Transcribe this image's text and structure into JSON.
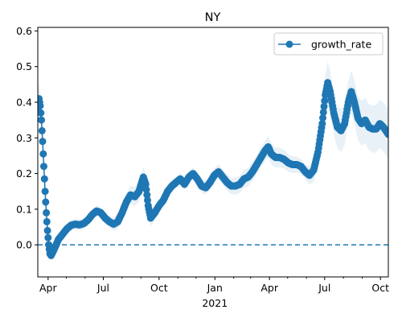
{
  "chart_data": {
    "type": "line",
    "title": "NY",
    "xlabel": "",
    "ylabel": "",
    "x_range": [
      "2020-03-15",
      "2021-10-14"
    ],
    "ylim": [
      -0.09,
      0.61
    ],
    "x_ticks": [
      {
        "date": "2020-04-01",
        "label": "Apr"
      },
      {
        "date": "2020-07-01",
        "label": "Jul"
      },
      {
        "date": "2020-10-01",
        "label": "Oct"
      },
      {
        "date": "2021-01-01",
        "label": "Jan"
      },
      {
        "date": "2021-04-01",
        "label": "Apr"
      },
      {
        "date": "2021-07-01",
        "label": "Jul"
      },
      {
        "date": "2021-10-01",
        "label": "Oct"
      }
    ],
    "x_year_label": {
      "date": "2021-01-01",
      "label": "2021"
    },
    "y_ticks": [
      0.0,
      0.1,
      0.2,
      0.3,
      0.4,
      0.5,
      0.6
    ],
    "y_tick_labels": [
      "0.0",
      "0.1",
      "0.2",
      "0.3",
      "0.4",
      "0.5",
      "0.6"
    ],
    "legend": {
      "position": "top-right",
      "entries": [
        "growth_rate"
      ]
    },
    "reference_line": {
      "y": 0.0,
      "style": "dashed"
    },
    "grid": false,
    "colors": {
      "series": "#1f77b4",
      "band": "#1f77b4",
      "band_opacity": 0.1
    },
    "series": [
      {
        "name": "growth_rate",
        "points": [
          [
            "2020-03-15",
            0.38
          ],
          [
            "2020-03-17",
            0.41
          ],
          [
            "2020-03-19",
            0.39
          ],
          [
            "2020-03-21",
            0.35
          ],
          [
            "2020-03-23",
            0.29
          ],
          [
            "2020-03-25",
            0.22
          ],
          [
            "2020-03-27",
            0.15
          ],
          [
            "2020-03-29",
            0.09
          ],
          [
            "2020-03-31",
            0.04
          ],
          [
            "2020-04-02",
            0.0
          ],
          [
            "2020-04-04",
            -0.025
          ],
          [
            "2020-04-06",
            -0.03
          ],
          [
            "2020-04-09",
            -0.02
          ],
          [
            "2020-04-13",
            -0.005
          ],
          [
            "2020-04-18",
            0.015
          ],
          [
            "2020-04-25",
            0.03
          ],
          [
            "2020-05-02",
            0.045
          ],
          [
            "2020-05-09",
            0.055
          ],
          [
            "2020-05-16",
            0.058
          ],
          [
            "2020-05-23",
            0.056
          ],
          [
            "2020-05-30",
            0.06
          ],
          [
            "2020-06-06",
            0.07
          ],
          [
            "2020-06-13",
            0.085
          ],
          [
            "2020-06-20",
            0.095
          ],
          [
            "2020-06-27",
            0.09
          ],
          [
            "2020-07-04",
            0.075
          ],
          [
            "2020-07-11",
            0.065
          ],
          [
            "2020-07-18",
            0.058
          ],
          [
            "2020-07-25",
            0.065
          ],
          [
            "2020-08-01",
            0.09
          ],
          [
            "2020-08-08",
            0.12
          ],
          [
            "2020-08-15",
            0.14
          ],
          [
            "2020-08-22",
            0.135
          ],
          [
            "2020-08-29",
            0.15
          ],
          [
            "2020-09-05",
            0.19
          ],
          [
            "2020-09-09",
            0.17
          ],
          [
            "2020-09-13",
            0.11
          ],
          [
            "2020-09-17",
            0.075
          ],
          [
            "2020-09-24",
            0.09
          ],
          [
            "2020-10-01",
            0.11
          ],
          [
            "2020-10-08",
            0.125
          ],
          [
            "2020-10-15",
            0.15
          ],
          [
            "2020-10-22",
            0.165
          ],
          [
            "2020-10-29",
            0.175
          ],
          [
            "2020-11-05",
            0.185
          ],
          [
            "2020-11-12",
            0.17
          ],
          [
            "2020-11-19",
            0.19
          ],
          [
            "2020-11-26",
            0.2
          ],
          [
            "2020-12-03",
            0.185
          ],
          [
            "2020-12-10",
            0.165
          ],
          [
            "2020-12-17",
            0.16
          ],
          [
            "2020-12-24",
            0.175
          ],
          [
            "2020-12-31",
            0.195
          ],
          [
            "2021-01-07",
            0.205
          ],
          [
            "2021-01-14",
            0.19
          ],
          [
            "2021-01-21",
            0.175
          ],
          [
            "2021-01-28",
            0.165
          ],
          [
            "2021-02-04",
            0.165
          ],
          [
            "2021-02-11",
            0.17
          ],
          [
            "2021-02-18",
            0.185
          ],
          [
            "2021-02-25",
            0.19
          ],
          [
            "2021-03-04",
            0.205
          ],
          [
            "2021-03-11",
            0.225
          ],
          [
            "2021-03-18",
            0.245
          ],
          [
            "2021-03-25",
            0.265
          ],
          [
            "2021-03-30",
            0.275
          ],
          [
            "2021-04-04",
            0.255
          ],
          [
            "2021-04-11",
            0.245
          ],
          [
            "2021-04-18",
            0.245
          ],
          [
            "2021-04-25",
            0.24
          ],
          [
            "2021-05-02",
            0.23
          ],
          [
            "2021-05-09",
            0.225
          ],
          [
            "2021-05-16",
            0.225
          ],
          [
            "2021-05-23",
            0.22
          ],
          [
            "2021-05-30",
            0.205
          ],
          [
            "2021-06-06",
            0.195
          ],
          [
            "2021-06-13",
            0.21
          ],
          [
            "2021-06-20",
            0.26
          ],
          [
            "2021-06-27",
            0.34
          ],
          [
            "2021-07-02",
            0.42
          ],
          [
            "2021-07-06",
            0.455
          ],
          [
            "2021-07-10",
            0.43
          ],
          [
            "2021-07-16",
            0.37
          ],
          [
            "2021-07-22",
            0.33
          ],
          [
            "2021-07-28",
            0.32
          ],
          [
            "2021-08-03",
            0.34
          ],
          [
            "2021-08-09",
            0.4
          ],
          [
            "2021-08-14",
            0.43
          ],
          [
            "2021-08-19",
            0.4
          ],
          [
            "2021-08-25",
            0.355
          ],
          [
            "2021-08-31",
            0.34
          ],
          [
            "2021-09-06",
            0.35
          ],
          [
            "2021-09-12",
            0.33
          ],
          [
            "2021-09-18",
            0.325
          ],
          [
            "2021-09-24",
            0.325
          ],
          [
            "2021-09-30",
            0.34
          ],
          [
            "2021-10-06",
            0.33
          ],
          [
            "2021-10-14",
            0.31
          ]
        ],
        "band_halfwidth": [
          [
            "2020-03-15",
            0.05
          ],
          [
            "2020-04-05",
            0.015
          ],
          [
            "2020-07-01",
            0.015
          ],
          [
            "2020-09-05",
            0.03
          ],
          [
            "2020-10-01",
            0.015
          ],
          [
            "2021-01-01",
            0.02
          ],
          [
            "2021-04-01",
            0.03
          ],
          [
            "2021-06-01",
            0.02
          ],
          [
            "2021-07-06",
            0.06
          ],
          [
            "2021-08-14",
            0.06
          ],
          [
            "2021-10-14",
            0.07
          ]
        ]
      }
    ]
  }
}
